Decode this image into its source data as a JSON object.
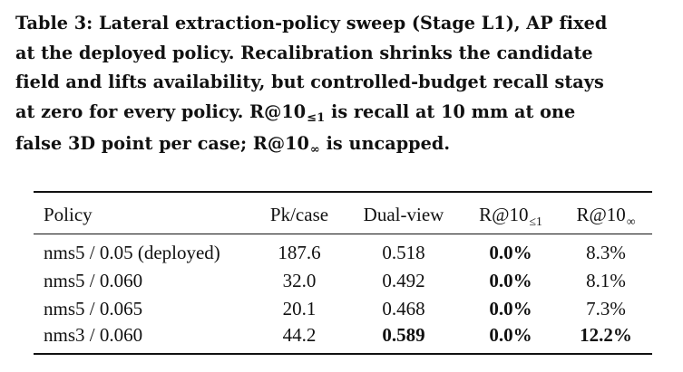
{
  "caption": {
    "label": "Table 3:",
    "lines": [
      "Lateral extraction-policy sweep (Stage L1), AP fixed",
      "at the deployed policy. Recalibration shrinks the candidate",
      "field and lifts availability, but controlled-budget recall stays",
      "at zero for every policy. R@10",
      " is recall at 10 mm at one",
      "false 3D point per case; R@10",
      " is uncapped."
    ],
    "sub_capped": "≤1",
    "sub_uncapped": "∞"
  },
  "table": {
    "headers": {
      "policy": "Policy",
      "pk_case": "Pk/case",
      "dual_view": "Dual-view",
      "r10_capped_base": "R@10",
      "r10_capped_sub": "≤1",
      "r10_uncapped_base": "R@10",
      "r10_uncapped_sub": "∞"
    },
    "rows": [
      {
        "policy": "nms5 / 0.05 (deployed)",
        "pk_case": "187.6",
        "dual_view": "0.518",
        "r10_capped": "0.0%",
        "r10_uncapped": "8.3%"
      },
      {
        "policy": "nms5 / 0.060",
        "pk_case": "32.0",
        "dual_view": "0.492",
        "r10_capped": "0.0%",
        "r10_uncapped": "8.1%"
      },
      {
        "policy": "nms5 / 0.065",
        "pk_case": "20.1",
        "dual_view": "0.468",
        "r10_capped": "0.0%",
        "r10_uncapped": "7.3%"
      },
      {
        "policy": "nms3 / 0.060",
        "pk_case": "44.2",
        "dual_view": "0.589",
        "r10_capped": "0.0%",
        "r10_uncapped": "12.2%"
      }
    ]
  }
}
